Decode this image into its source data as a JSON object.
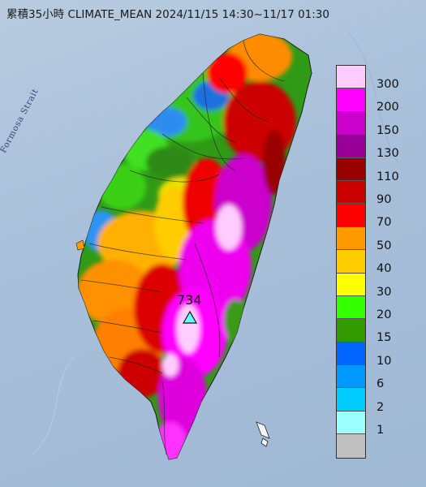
{
  "title": "累積35小時 CLIMATE_MEAN 2024/11/15 14:30~11/17 01:30",
  "strait_label": "Formosa Strait",
  "peak": {
    "value": "734",
    "marker": "triangle-icon"
  },
  "legend": [
    {
      "label": "300",
      "color": "#ffccff"
    },
    {
      "label": "200",
      "color": "#ff00ff"
    },
    {
      "label": "150",
      "color": "#cc00cc"
    },
    {
      "label": "130",
      "color": "#990099"
    },
    {
      "label": "110",
      "color": "#990000"
    },
    {
      "label": "90",
      "color": "#cc0000"
    },
    {
      "label": "70",
      "color": "#ff0000"
    },
    {
      "label": "50",
      "color": "#ff9900"
    },
    {
      "label": "40",
      "color": "#ffcc00"
    },
    {
      "label": "30",
      "color": "#ffff00"
    },
    {
      "label": "20",
      "color": "#33ff00"
    },
    {
      "label": "15",
      "color": "#339900"
    },
    {
      "label": "10",
      "color": "#0066ff"
    },
    {
      "label": "6",
      "color": "#0099ff"
    },
    {
      "label": "2",
      "color": "#00ccff"
    },
    {
      "label": "1",
      "color": "#99ffff"
    },
    {
      "label": "",
      "color": "#c0c0c0"
    }
  ]
}
